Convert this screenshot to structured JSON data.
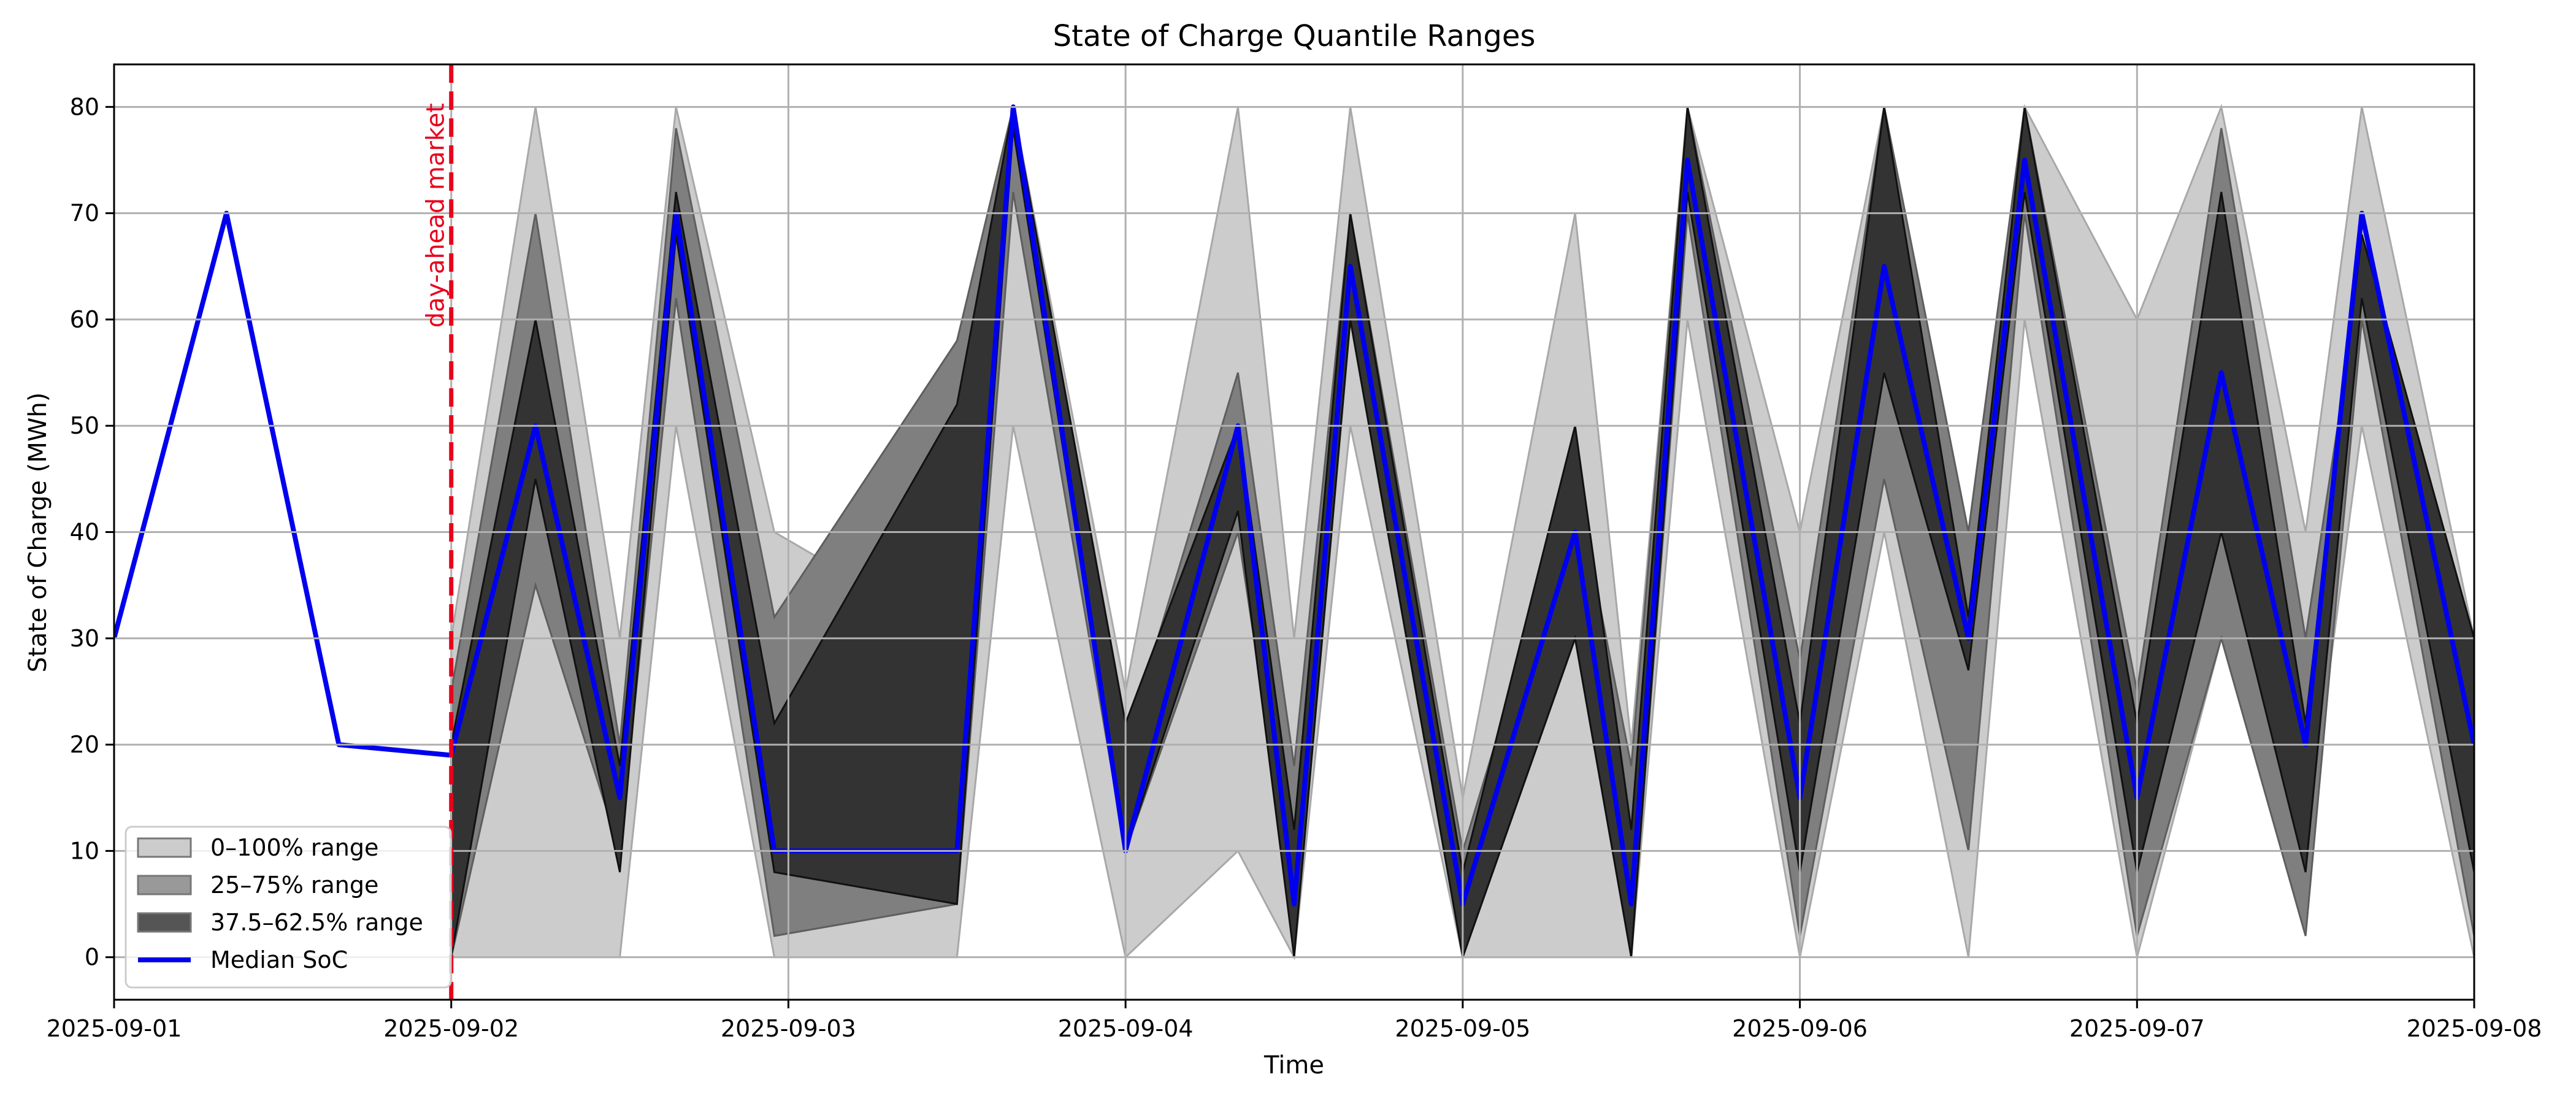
{
  "chart_data": {
    "type": "area",
    "title": "State of Charge Quantile Ranges",
    "xlabel": "Time",
    "ylabel": "State of Charge (MWh)",
    "xlim": [
      "2025-09-01 00:00",
      "2025-09-08 00:00"
    ],
    "ylim": [
      -4,
      84
    ],
    "x_ticks": [
      "2025-09-01",
      "2025-09-02",
      "2025-09-03",
      "2025-09-04",
      "2025-09-05",
      "2025-09-06",
      "2025-09-07",
      "2025-09-08"
    ],
    "y_ticks": [
      0,
      10,
      20,
      30,
      40,
      50,
      60,
      70,
      80
    ],
    "grid": true,
    "legend_position": "lower-left",
    "colors": {
      "band_0_100": "#cccccc",
      "band_25_75": "#7f7f7f",
      "band_375_625": "#333333",
      "median": "#0000ee",
      "vline": "#e8001c"
    },
    "vline": {
      "x": "2025-09-02 00:00",
      "label": "day-ahead market"
    },
    "legend": [
      {
        "label": "0–100% range",
        "type": "patch",
        "color": "#cccccc"
      },
      {
        "label": "25–75% range",
        "type": "patch",
        "color": "#999999"
      },
      {
        "label": "37.5–62.5% range",
        "type": "patch",
        "color": "#555555"
      },
      {
        "label": "Median SoC",
        "type": "line",
        "color": "#0000ee"
      }
    ],
    "x": [
      "2025-09-01 00:00",
      "2025-09-01 08:00",
      "2025-09-01 16:00",
      "2025-09-02 00:00",
      "2025-09-02 06:00",
      "2025-09-02 12:00",
      "2025-09-02 16:00",
      "2025-09-02 23:00",
      "2025-09-03 12:00",
      "2025-09-03 16:00",
      "2025-09-04 00:00",
      "2025-09-04 08:00",
      "2025-09-04 12:00",
      "2025-09-04 16:00",
      "2025-09-05 00:00",
      "2025-09-05 08:00",
      "2025-09-05 12:00",
      "2025-09-05 16:00",
      "2025-09-06 00:00",
      "2025-09-06 06:00",
      "2025-09-06 12:00",
      "2025-09-06 16:00",
      "2025-09-07 00:00",
      "2025-09-07 06:00",
      "2025-09-07 12:00",
      "2025-09-07 16:00",
      "2025-09-08 00:00"
    ],
    "series": [
      {
        "name": "Median SoC",
        "values": [
          30,
          70,
          20,
          19,
          50,
          15,
          70,
          10,
          10,
          80,
          10,
          50,
          5,
          65,
          5,
          40,
          5,
          75,
          15,
          65,
          30,
          75,
          15,
          55,
          20,
          70,
          20
        ]
      }
    ],
    "bands": [
      {
        "name": "0–100% range",
        "lower": [
          null,
          null,
          null,
          0,
          0,
          0,
          50,
          0,
          0,
          50,
          0,
          10,
          0,
          50,
          0,
          0,
          0,
          60,
          0,
          40,
          0,
          60,
          0,
          30,
          10,
          50,
          0
        ],
        "upper": [
          null,
          null,
          null,
          30,
          80,
          30,
          80,
          40,
          30,
          80,
          25,
          80,
          30,
          80,
          15,
          70,
          20,
          80,
          40,
          80,
          40,
          80,
          60,
          80,
          40,
          80,
          30
        ]
      },
      {
        "name": "25–75% range",
        "lower": [
          null,
          null,
          null,
          0,
          35,
          10,
          62,
          2,
          5,
          72,
          10,
          40,
          5,
          60,
          0,
          30,
          0,
          70,
          2,
          45,
          10,
          70,
          2,
          30,
          2,
          60,
          2
        ],
        "upper": [
          null,
          null,
          null,
          25,
          70,
          20,
          78,
          32,
          58,
          80,
          20,
          55,
          18,
          70,
          10,
          45,
          18,
          80,
          28,
          80,
          40,
          80,
          25,
          78,
          30,
          65,
          20
        ]
      },
      {
        "name": "37.5–62.5% range",
        "lower": [
          null,
          null,
          null,
          0,
          45,
          8,
          68,
          8,
          5,
          78,
          10,
          42,
          0,
          60,
          0,
          30,
          0,
          72,
          8,
          55,
          27,
          72,
          8,
          40,
          8,
          62,
          8
        ],
        "upper": [
          null,
          null,
          null,
          20,
          60,
          18,
          72,
          22,
          52,
          80,
          22,
          50,
          12,
          70,
          8,
          50,
          12,
          80,
          22,
          80,
          32,
          80,
          22,
          72,
          22,
          68,
          30
        ]
      }
    ]
  }
}
